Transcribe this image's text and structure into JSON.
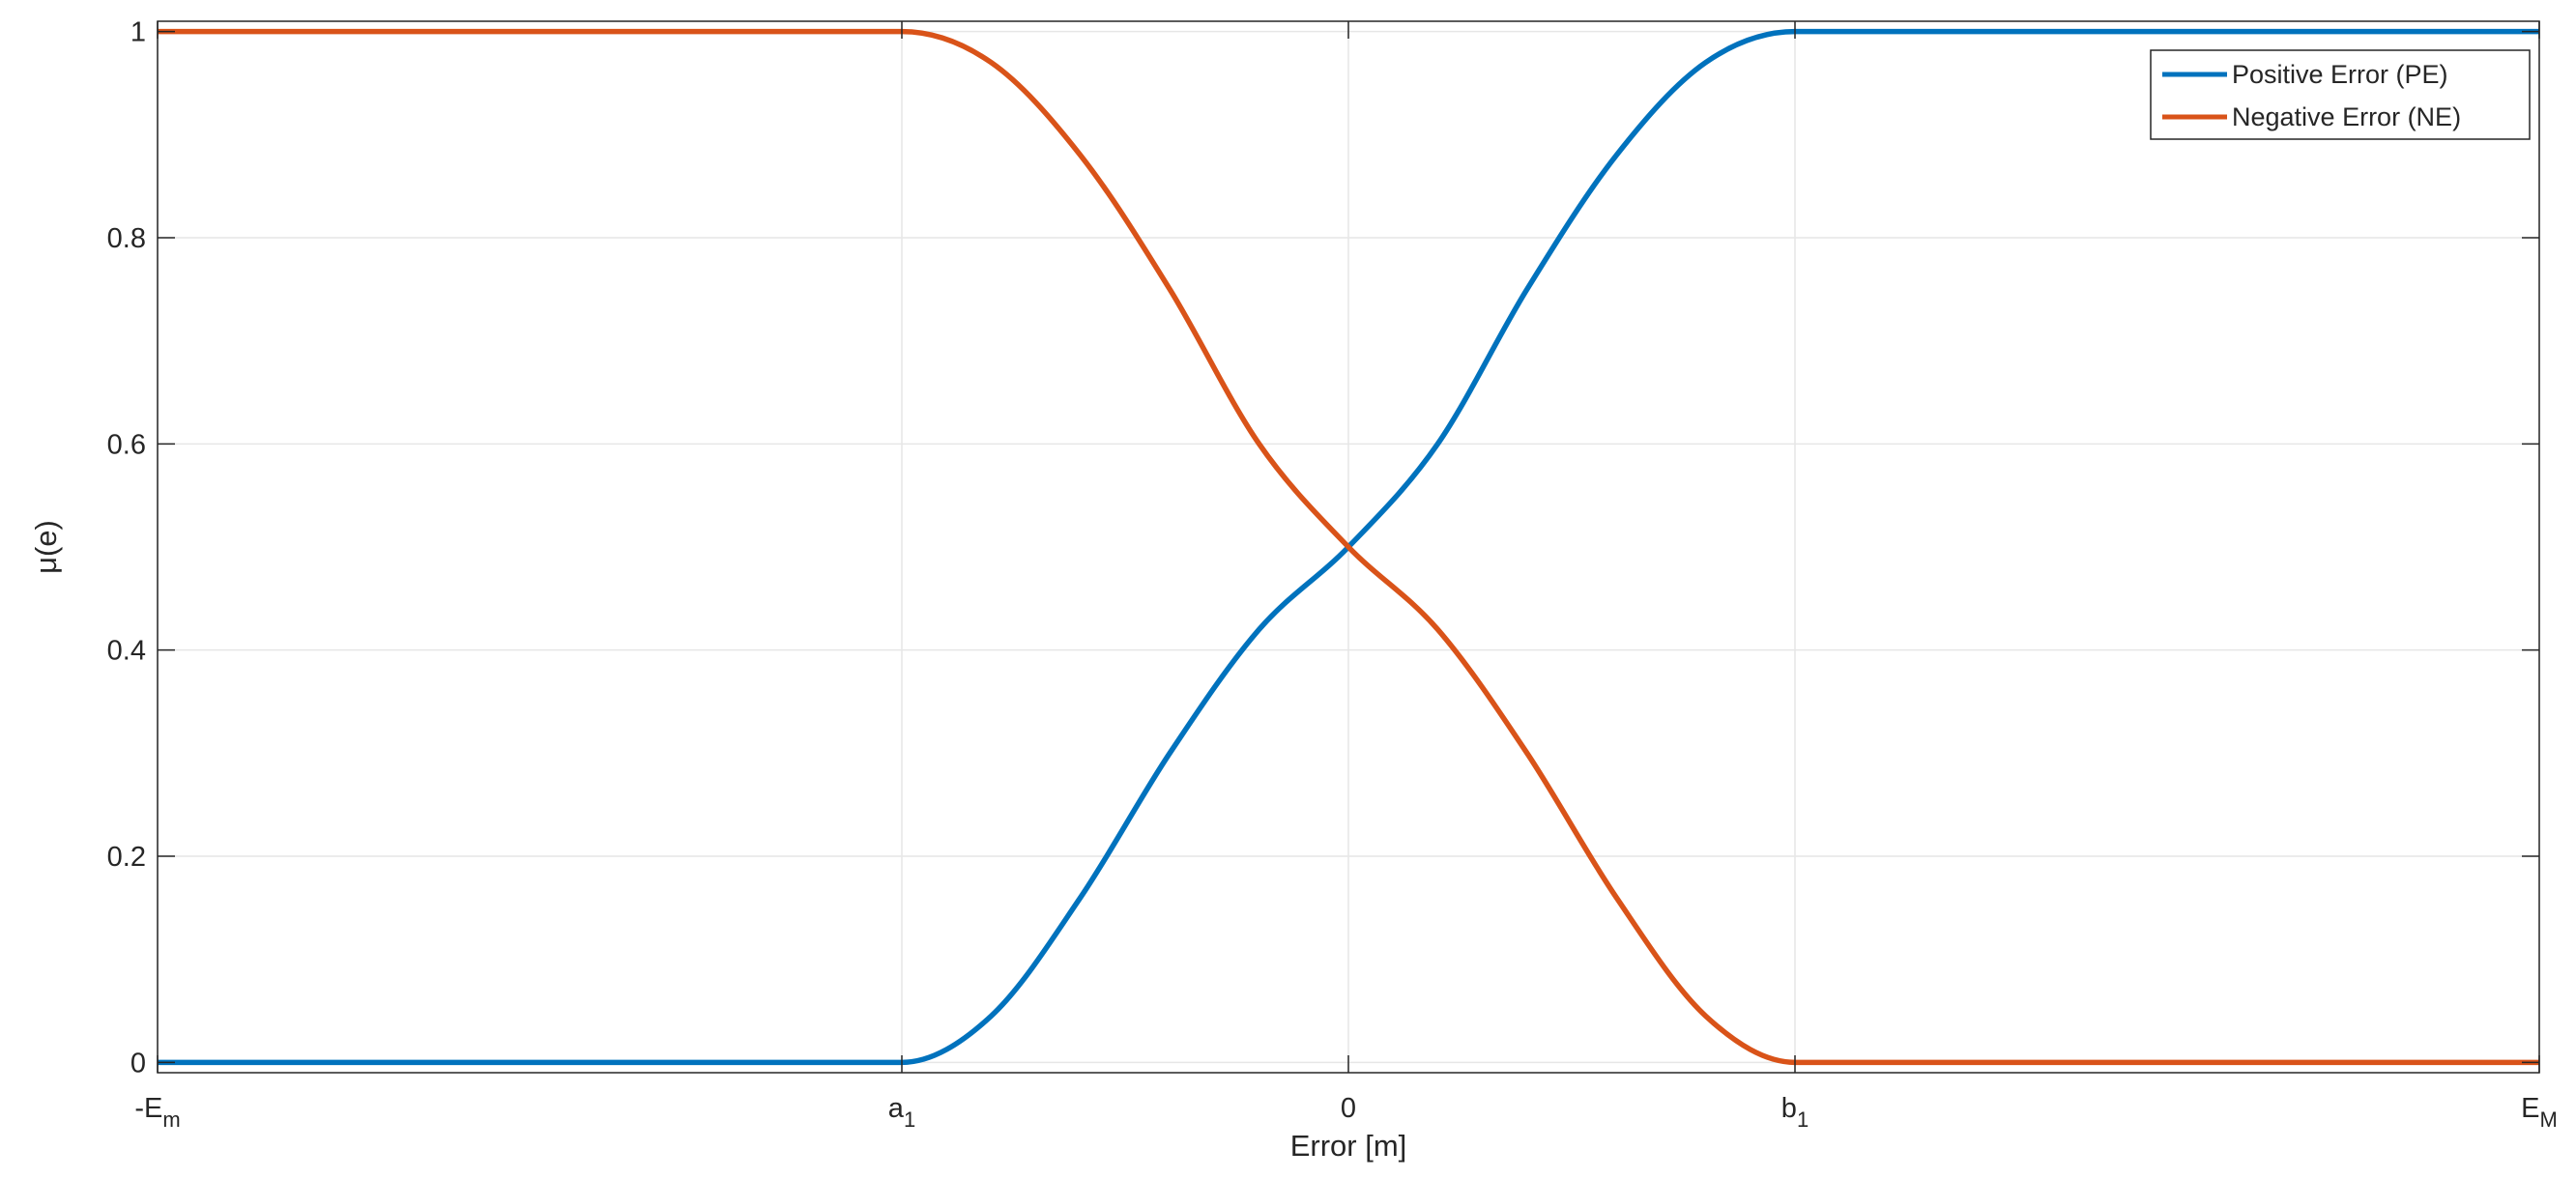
{
  "chart_data": {
    "type": "line",
    "xlabel": "Error [m]",
    "ylabel": "μ(e)",
    "xlim": [
      0,
      4
    ],
    "ylim": [
      -0.01,
      1.01
    ],
    "grid": true,
    "legend_position": "top-right",
    "x_ticks": [
      {
        "value": 0,
        "main": "-E",
        "sub": "m"
      },
      {
        "value": 1.25,
        "main": "a",
        "sub": "1"
      },
      {
        "value": 2,
        "main": "0",
        "sub": ""
      },
      {
        "value": 2.75,
        "main": "b",
        "sub": "1"
      },
      {
        "value": 4,
        "main": "E",
        "sub": "M"
      }
    ],
    "y_ticks": [
      0,
      0.2,
      0.4,
      0.6,
      0.8,
      1
    ],
    "y_tick_labels": [
      "0",
      "0.2",
      "0.4",
      "0.6",
      "0.8",
      "1"
    ],
    "series": [
      {
        "name": "Positive Error (PE)",
        "color": "#0072BD",
        "x": [
          0,
          1.25,
          1.4,
          1.55,
          1.7,
          1.85,
          2,
          2.15,
          2.3,
          2.45,
          2.6,
          2.75,
          4
        ],
        "values": [
          0,
          0,
          0.045,
          0.16,
          0.3,
          0.42,
          0.5,
          0.6,
          0.75,
          0.88,
          0.97,
          1,
          1
        ]
      },
      {
        "name": "Negative Error (NE)",
        "color": "#D95319",
        "x": [
          0,
          1.25,
          1.4,
          1.55,
          1.7,
          1.85,
          2,
          2.15,
          2.3,
          2.45,
          2.6,
          2.75,
          4
        ],
        "values": [
          1,
          1,
          0.97,
          0.88,
          0.75,
          0.6,
          0.5,
          0.42,
          0.3,
          0.16,
          0.045,
          0,
          0
        ]
      }
    ]
  }
}
